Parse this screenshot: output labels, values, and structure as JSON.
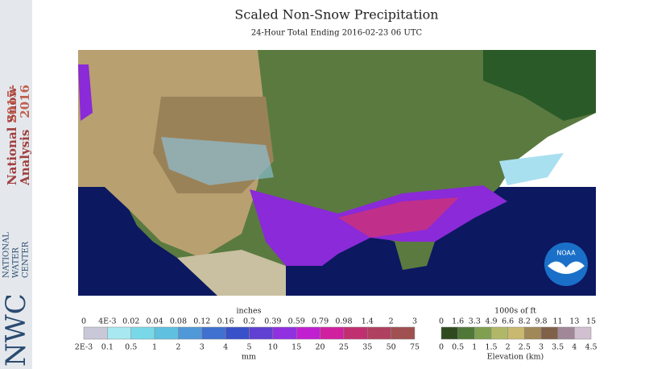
{
  "sidebar": {
    "line1": "National Snow",
    "line2": "Analysis",
    "year1": "2015-",
    "year2": "2016",
    "logo": "NWC",
    "org1": "NATIONAL",
    "org2": "WATER",
    "org3": "CENTER"
  },
  "header": {
    "title": "Scaled Non-Snow Precipitation",
    "subtitle": "24-Hour Total Ending 2016-02-23 06 UTC"
  },
  "map": {
    "logo": "NOAA"
  },
  "precip_legend": {
    "top_unit": "inches",
    "top_labels": [
      "0",
      "4E-3",
      "0.02",
      "0.04",
      "0.08",
      "0.12",
      "0.16",
      "0.2",
      "0.39",
      "0.59",
      "0.79",
      "0.98",
      "1.4",
      "2",
      "3"
    ],
    "bottom_labels": [
      "2E-3",
      "0.1",
      "0.5",
      "1",
      "2",
      "3",
      "4",
      "5",
      "10",
      "15",
      "20",
      "25",
      "35",
      "50",
      "75"
    ],
    "bottom_unit": "mm"
  },
  "elev_legend": {
    "top_unit": "1000s of ft",
    "top_labels": [
      "0",
      "1.6",
      "3.3",
      "4.9",
      "6.6",
      "8.2",
      "9.8",
      "11",
      "13",
      "15"
    ],
    "bottom_labels": [
      "0",
      "0.5",
      "1",
      "1.5",
      "2",
      "2.5",
      "3",
      "3.5",
      "4",
      "4.5"
    ],
    "bottom_unit": "Elevation (km)"
  }
}
